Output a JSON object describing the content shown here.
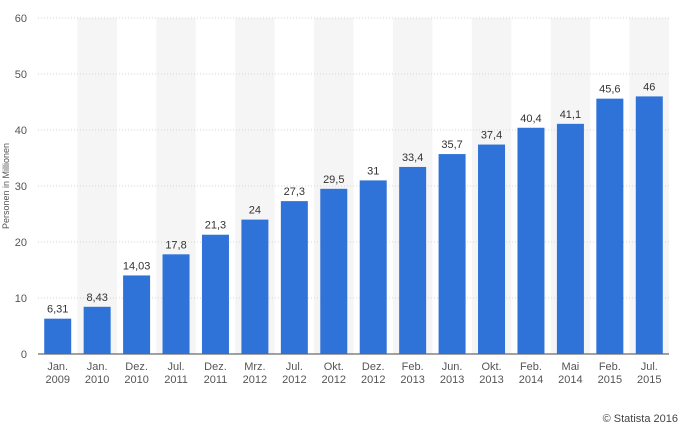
{
  "chart_data": {
    "type": "bar",
    "title": "",
    "xlabel": "",
    "ylabel": "Personen in Millionen",
    "ylim": [
      0,
      60
    ],
    "yticks": [
      0,
      10,
      20,
      30,
      40,
      50,
      60
    ],
    "grid": true,
    "bar_color": "#2f73d8",
    "categories": [
      [
        "Jan.",
        "2009"
      ],
      [
        "Jan.",
        "2010"
      ],
      [
        "Dez.",
        "2010"
      ],
      [
        "Jul.",
        "2011"
      ],
      [
        "Dez.",
        "2011"
      ],
      [
        "Mrz.",
        "2012"
      ],
      [
        "Jul.",
        "2012"
      ],
      [
        "Okt.",
        "2012"
      ],
      [
        "Dez.",
        "2012"
      ],
      [
        "Feb.",
        "2013"
      ],
      [
        "Jun.",
        "2013"
      ],
      [
        "Okt.",
        "2013"
      ],
      [
        "Feb.",
        "2014"
      ],
      [
        "Mai",
        "2014"
      ],
      [
        "Feb.",
        "2015"
      ],
      [
        "Jul.",
        "2015"
      ]
    ],
    "values": [
      6.31,
      8.43,
      14.03,
      17.8,
      21.3,
      24,
      27.3,
      29.5,
      31,
      33.4,
      35.7,
      37.4,
      40.4,
      41.1,
      45.6,
      46
    ],
    "value_labels": [
      "6,31",
      "8,43",
      "14,03",
      "17,8",
      "21,3",
      "24",
      "27,3",
      "29,5",
      "31",
      "33,4",
      "35,7",
      "37,4",
      "40,4",
      "41,1",
      "45,6",
      "46"
    ]
  },
  "credit": "© Statista 2016"
}
